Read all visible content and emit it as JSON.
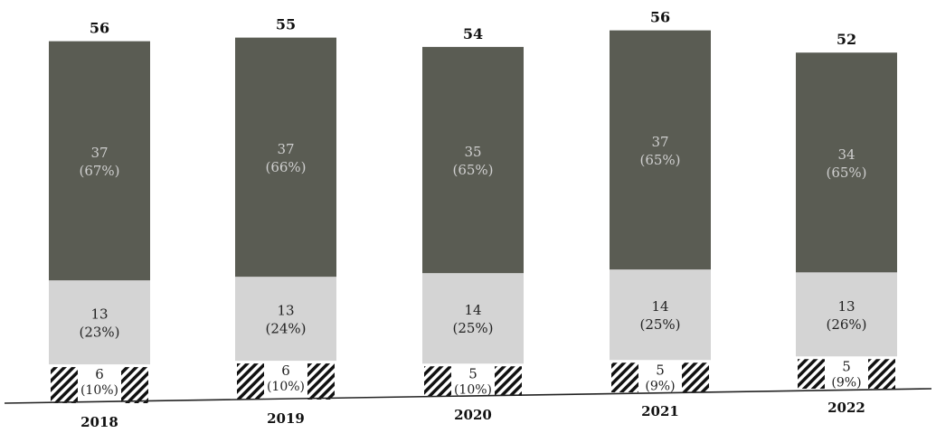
{
  "chart_data": {
    "type": "bar",
    "stacked": true,
    "categories": [
      "2018",
      "2019",
      "2020",
      "2021",
      "2022"
    ],
    "totals": [
      56,
      55,
      54,
      56,
      52
    ],
    "series": [
      {
        "values": [
          6,
          6,
          5,
          5,
          5
        ],
        "percent_labels": [
          "(10%)",
          "(10%)",
          "(10%)",
          "(9%)",
          "(9%)"
        ],
        "color": "#ffffff",
        "pattern": "hatched-sides"
      },
      {
        "values": [
          13,
          13,
          14,
          14,
          13
        ],
        "percent_labels": [
          "(23%)",
          "(24%)",
          "(25%)",
          "(25%)",
          "(26%)"
        ],
        "color": "#d4d4d4"
      },
      {
        "values": [
          37,
          37,
          35,
          37,
          34
        ],
        "percent_labels": [
          "(67%)",
          "(66%)",
          "(65%)",
          "(65%)",
          "(65%)"
        ],
        "color": "#5a5c53"
      }
    ],
    "title": "",
    "xlabel": "",
    "ylabel": "",
    "grid": false,
    "legend": "none"
  }
}
